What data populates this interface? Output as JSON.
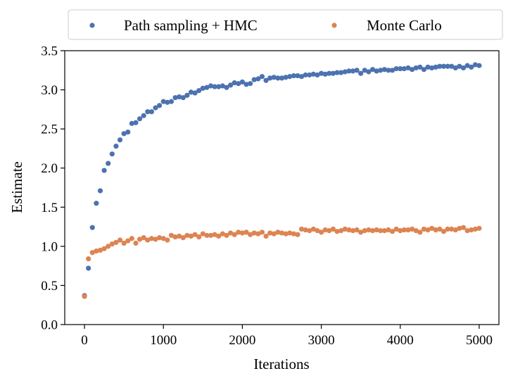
{
  "chart_data": {
    "type": "scatter",
    "title": "",
    "xlabel": "Iterations",
    "ylabel": "Estimate",
    "xlim": [
      -250,
      5250
    ],
    "ylim": [
      0.0,
      3.5
    ],
    "xticks": [
      "0",
      "1000",
      "2000",
      "3000",
      "4000",
      "5000"
    ],
    "yticks": [
      "0.0",
      "0.5",
      "1.0",
      "1.5",
      "2.0",
      "2.5",
      "3.0",
      "3.5"
    ],
    "grid": false,
    "legend_position": "top, above plot",
    "series": [
      {
        "name": "Path sampling + HMC",
        "color": "#4c72b0",
        "x": [
          0,
          50,
          100,
          150,
          200,
          250,
          300,
          350,
          400,
          450,
          500,
          550,
          600,
          650,
          700,
          750,
          800,
          850,
          900,
          950,
          1000,
          1050,
          1100,
          1150,
          1200,
          1250,
          1300,
          1350,
          1400,
          1450,
          1500,
          1550,
          1600,
          1650,
          1700,
          1750,
          1800,
          1850,
          1900,
          1950,
          2000,
          2050,
          2100,
          2150,
          2200,
          2250,
          2300,
          2350,
          2400,
          2450,
          2500,
          2550,
          2600,
          2650,
          2700,
          2750,
          2800,
          2850,
          2900,
          2950,
          3000,
          3050,
          3100,
          3150,
          3200,
          3250,
          3300,
          3350,
          3400,
          3450,
          3500,
          3550,
          3600,
          3650,
          3700,
          3750,
          3800,
          3850,
          3900,
          3950,
          4000,
          4050,
          4100,
          4150,
          4200,
          4250,
          4300,
          4350,
          4400,
          4450,
          4500,
          4550,
          4600,
          4650,
          4700,
          4750,
          4800,
          4850,
          4900,
          4950,
          5000
        ],
        "y": [
          0.37,
          0.72,
          1.24,
          1.55,
          1.71,
          1.97,
          2.06,
          2.18,
          2.28,
          2.36,
          2.44,
          2.46,
          2.57,
          2.58,
          2.63,
          2.67,
          2.72,
          2.72,
          2.77,
          2.8,
          2.85,
          2.84,
          2.85,
          2.9,
          2.91,
          2.9,
          2.93,
          2.97,
          2.96,
          2.99,
          3.02,
          3.03,
          3.05,
          3.04,
          3.04,
          3.05,
          3.03,
          3.06,
          3.09,
          3.08,
          3.1,
          3.07,
          3.08,
          3.13,
          3.14,
          3.17,
          3.12,
          3.15,
          3.16,
          3.15,
          3.15,
          3.16,
          3.17,
          3.18,
          3.18,
          3.17,
          3.19,
          3.19,
          3.2,
          3.19,
          3.21,
          3.2,
          3.21,
          3.21,
          3.22,
          3.22,
          3.23,
          3.24,
          3.24,
          3.25,
          3.21,
          3.25,
          3.23,
          3.26,
          3.24,
          3.25,
          3.26,
          3.25,
          3.25,
          3.27,
          3.27,
          3.27,
          3.28,
          3.26,
          3.28,
          3.29,
          3.26,
          3.29,
          3.28,
          3.29,
          3.3,
          3.3,
          3.3,
          3.3,
          3.28,
          3.3,
          3.28,
          3.31,
          3.29,
          3.32,
          3.31
        ]
      },
      {
        "name": "Monte Carlo",
        "color": "#dd8452",
        "x": [
          0,
          50,
          100,
          150,
          200,
          250,
          300,
          350,
          400,
          450,
          500,
          550,
          600,
          650,
          700,
          750,
          800,
          850,
          900,
          950,
          1000,
          1050,
          1100,
          1150,
          1200,
          1250,
          1300,
          1350,
          1400,
          1450,
          1500,
          1550,
          1600,
          1650,
          1700,
          1750,
          1800,
          1850,
          1900,
          1950,
          2000,
          2050,
          2100,
          2150,
          2200,
          2250,
          2300,
          2350,
          2400,
          2450,
          2500,
          2550,
          2600,
          2650,
          2700,
          2750,
          2800,
          2850,
          2900,
          2950,
          3000,
          3050,
          3100,
          3150,
          3200,
          3250,
          3300,
          3350,
          3400,
          3450,
          3500,
          3550,
          3600,
          3650,
          3700,
          3750,
          3800,
          3850,
          3900,
          3950,
          4000,
          4050,
          4100,
          4150,
          4200,
          4250,
          4300,
          4350,
          4400,
          4450,
          4500,
          4550,
          4600,
          4650,
          4700,
          4750,
          4800,
          4850,
          4900,
          4950,
          5000
        ],
        "y": [
          0.36,
          0.84,
          0.92,
          0.94,
          0.95,
          0.97,
          1.0,
          1.03,
          1.05,
          1.08,
          1.04,
          1.07,
          1.1,
          1.04,
          1.09,
          1.11,
          1.08,
          1.1,
          1.09,
          1.11,
          1.1,
          1.08,
          1.14,
          1.12,
          1.13,
          1.11,
          1.14,
          1.13,
          1.15,
          1.12,
          1.16,
          1.14,
          1.14,
          1.15,
          1.13,
          1.16,
          1.14,
          1.17,
          1.15,
          1.18,
          1.17,
          1.18,
          1.15,
          1.17,
          1.16,
          1.18,
          1.13,
          1.17,
          1.16,
          1.18,
          1.17,
          1.16,
          1.17,
          1.16,
          1.15,
          1.22,
          1.21,
          1.2,
          1.22,
          1.2,
          1.18,
          1.21,
          1.2,
          1.22,
          1.19,
          1.2,
          1.22,
          1.21,
          1.2,
          1.21,
          1.18,
          1.2,
          1.21,
          1.2,
          1.21,
          1.2,
          1.2,
          1.21,
          1.19,
          1.22,
          1.2,
          1.21,
          1.21,
          1.22,
          1.2,
          1.18,
          1.22,
          1.21,
          1.23,
          1.21,
          1.22,
          1.19,
          1.22,
          1.22,
          1.21,
          1.23,
          1.24,
          1.2,
          1.21,
          1.22,
          1.23
        ]
      }
    ]
  }
}
